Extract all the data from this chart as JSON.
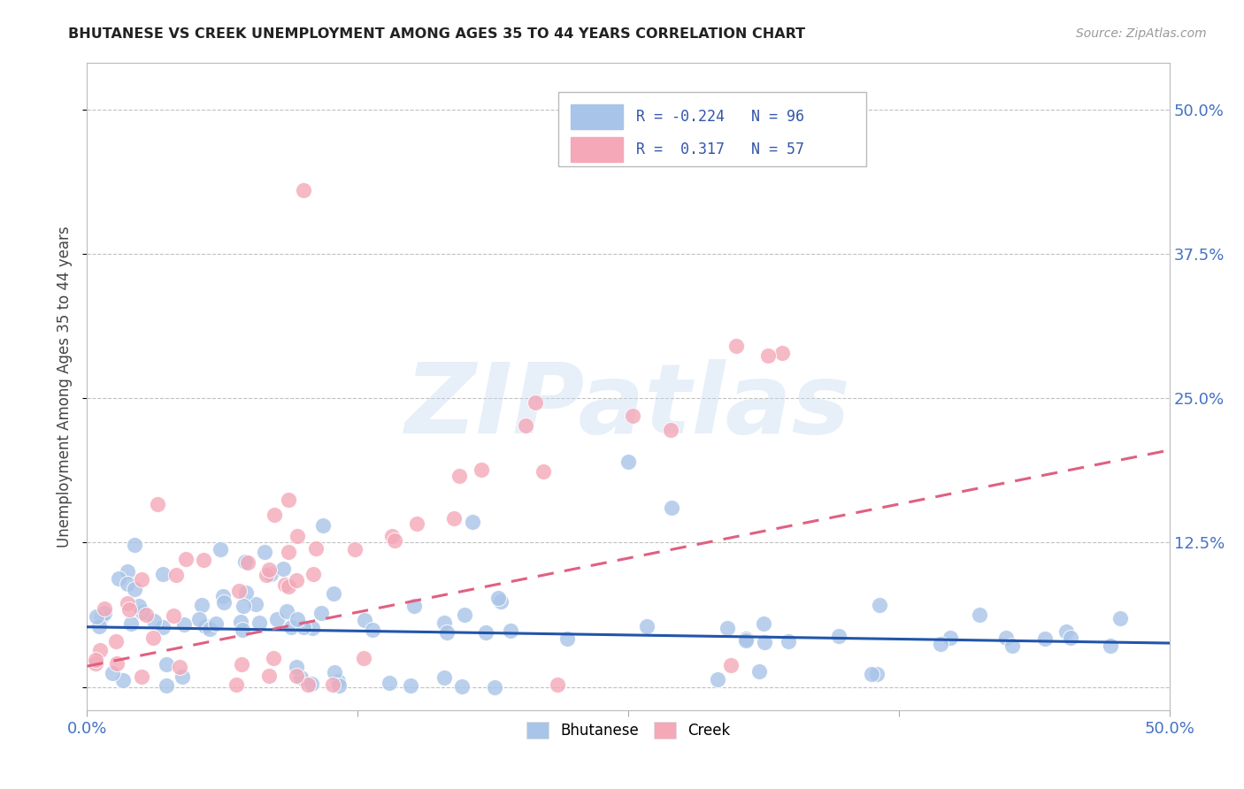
{
  "title": "BHUTANESE VS CREEK UNEMPLOYMENT AMONG AGES 35 TO 44 YEARS CORRELATION CHART",
  "source": "Source: ZipAtlas.com",
  "ylabel": "Unemployment Among Ages 35 to 44 years",
  "xlim": [
    0.0,
    0.5
  ],
  "ylim": [
    -0.02,
    0.54
  ],
  "watermark_text": "ZIPatlas",
  "blue_color": "#a8c4e8",
  "pink_color": "#f4a8b8",
  "blue_line_color": "#2255aa",
  "pink_line_color": "#e06080",
  "background_color": "#ffffff",
  "grid_color": "#bbbbbb",
  "blue_trend_y0": 0.052,
  "blue_trend_y1": 0.038,
  "pink_trend_y0": 0.018,
  "pink_trend_y1": 0.205,
  "legend_entries": [
    {
      "label": "R = -0.224   N = 96",
      "color": "#a8c4e8"
    },
    {
      "label": "R =  0.317   N = 57",
      "color": "#f4a8b8"
    }
  ],
  "bottom_legend": [
    "Bhutanese",
    "Creek"
  ]
}
